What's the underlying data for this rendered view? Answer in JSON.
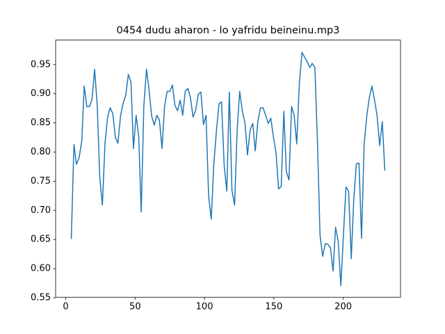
{
  "chart_data": {
    "type": "line",
    "title": "0454 dudu aharon - lo yafridu beineinu.mp3",
    "x": [
      4.0,
      5.9,
      7.7,
      9.6,
      11.5,
      13.3,
      15.2,
      17.1,
      18.9,
      20.8,
      22.7,
      24.5,
      26.4,
      28.3,
      30.2,
      32.0,
      33.9,
      35.8,
      37.6,
      39.5,
      41.4,
      43.2,
      45.1,
      47.0,
      48.8,
      50.7,
      52.6,
      54.4,
      56.3,
      58.2,
      60.0,
      61.9,
      63.8,
      65.6,
      67.5,
      69.4,
      71.2,
      73.1,
      75.0,
      76.9,
      78.7,
      80.6,
      82.5,
      84.3,
      86.2,
      88.1,
      89.9,
      91.8,
      93.7,
      95.5,
      97.4,
      99.3,
      101.1,
      103.0,
      104.9,
      106.7,
      108.6,
      110.5,
      112.3,
      114.2,
      116.1,
      117.9,
      119.8,
      121.7,
      123.6,
      125.4,
      127.3,
      129.2,
      131.0,
      132.9,
      134.8,
      136.6,
      138.5,
      140.4,
      142.2,
      144.1,
      146.0,
      147.8,
      149.7,
      151.6,
      153.4,
      155.3,
      157.2,
      159.0,
      160.9,
      162.8,
      164.6,
      166.5,
      168.4,
      170.3,
      172.1,
      174.0,
      175.9,
      177.7,
      179.6,
      181.5,
      183.3,
      185.2,
      187.1,
      188.9,
      190.8,
      192.7,
      194.5,
      196.4,
      198.3,
      200.1,
      202.0,
      203.9,
      205.8,
      207.6,
      209.5,
      211.4,
      213.2,
      215.1,
      217.0,
      218.8,
      220.7,
      222.6,
      224.4,
      226.3,
      228.2,
      230.0
    ],
    "series": [
      {
        "color": "#1f77b4",
        "values": [
          0.651,
          0.813,
          0.779,
          0.79,
          0.818,
          0.913,
          0.878,
          0.878,
          0.89,
          0.942,
          0.88,
          0.757,
          0.709,
          0.815,
          0.86,
          0.876,
          0.866,
          0.825,
          0.815,
          0.862,
          0.884,
          0.897,
          0.933,
          0.92,
          0.806,
          0.863,
          0.827,
          0.697,
          0.88,
          0.942,
          0.908,
          0.862,
          0.846,
          0.863,
          0.855,
          0.806,
          0.878,
          0.904,
          0.904,
          0.915,
          0.88,
          0.871,
          0.889,
          0.863,
          0.905,
          0.909,
          0.893,
          0.86,
          0.872,
          0.899,
          0.903,
          0.847,
          0.863,
          0.724,
          0.685,
          0.778,
          0.836,
          0.883,
          0.886,
          0.777,
          0.733,
          0.903,
          0.735,
          0.709,
          0.84,
          0.904,
          0.87,
          0.85,
          0.795,
          0.838,
          0.849,
          0.802,
          0.853,
          0.876,
          0.876,
          0.863,
          0.849,
          0.858,
          0.826,
          0.798,
          0.737,
          0.741,
          0.87,
          0.767,
          0.752,
          0.878,
          0.864,
          0.814,
          0.918,
          0.971,
          0.963,
          0.955,
          0.945,
          0.952,
          0.945,
          0.813,
          0.657,
          0.621,
          0.643,
          0.642,
          0.636,
          0.596,
          0.671,
          0.647,
          0.571,
          0.655,
          0.74,
          0.733,
          0.617,
          0.718,
          0.78,
          0.781,
          0.652,
          0.814,
          0.862,
          0.893,
          0.913,
          0.889,
          0.863,
          0.811,
          0.852,
          0.768
        ]
      }
    ],
    "xlim": [
      -7.3,
      241.3
    ],
    "ylim": [
      0.551,
      0.992
    ],
    "xticks": [
      0,
      50,
      100,
      150,
      200
    ],
    "yticks": [
      0.55,
      {
        "value": 0.6,
        "label": "0.60"
      },
      0.65,
      {
        "value": 0.7,
        "label": "0.70"
      },
      0.75,
      {
        "value": 0.8,
        "label": "0.80"
      },
      0.85,
      {
        "value": 0.9,
        "label": "0.90"
      },
      0.95
    ],
    "grid": false
  }
}
